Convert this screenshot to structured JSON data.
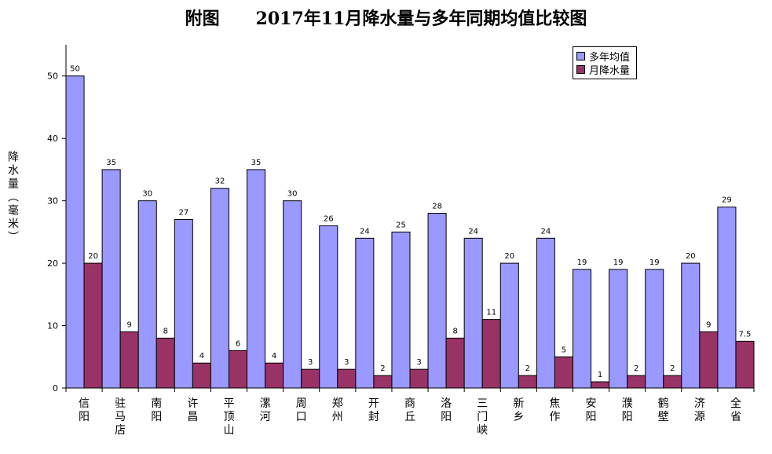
{
  "chart_data": {
    "type": "bar",
    "title": "附图      2017年11月降水量与多年同期均值比较图",
    "ylabel": "降水量（毫米）",
    "xlabel": "",
    "ylim": [
      0,
      55
    ],
    "yticks": [
      "0",
      "10",
      "20",
      "30",
      "40",
      "50"
    ],
    "categories": [
      "信阳",
      "驻马店",
      "南阳",
      "许昌",
      "平顶山",
      "漯河",
      "周口",
      "郑州",
      "开封",
      "商丘",
      "洛阳",
      "三门峡",
      "新乡",
      "焦作",
      "安阳",
      "濮阳",
      "鹤壁",
      "济源",
      "全省"
    ],
    "series": [
      {
        "name": "多年均值",
        "color": "#9999ff",
        "values": [
          50,
          35,
          30,
          27,
          32,
          35,
          30,
          26,
          24,
          25,
          28,
          24,
          20,
          24,
          19,
          19,
          19,
          20,
          29
        ],
        "labels": [
          "50",
          "35",
          "30",
          "27",
          "32",
          "35",
          "30",
          "26",
          "24",
          "25",
          "28",
          "24",
          "20",
          "24",
          "19",
          "19",
          "19",
          "20",
          "29"
        ]
      },
      {
        "name": "月降水量",
        "color": "#993366",
        "values": [
          20,
          9,
          8,
          4,
          6,
          4,
          3,
          3,
          2,
          3,
          8,
          11,
          2,
          5,
          1,
          2,
          2,
          9,
          7.5
        ],
        "labels": [
          "20",
          "9",
          "8",
          "4",
          "6",
          "4",
          "3",
          "3",
          "2",
          "3",
          "8",
          "11",
          "2",
          "5",
          "1",
          "2",
          "2",
          "9",
          "7.5"
        ]
      }
    ],
    "grid": false,
    "legend_position": "top-right"
  }
}
